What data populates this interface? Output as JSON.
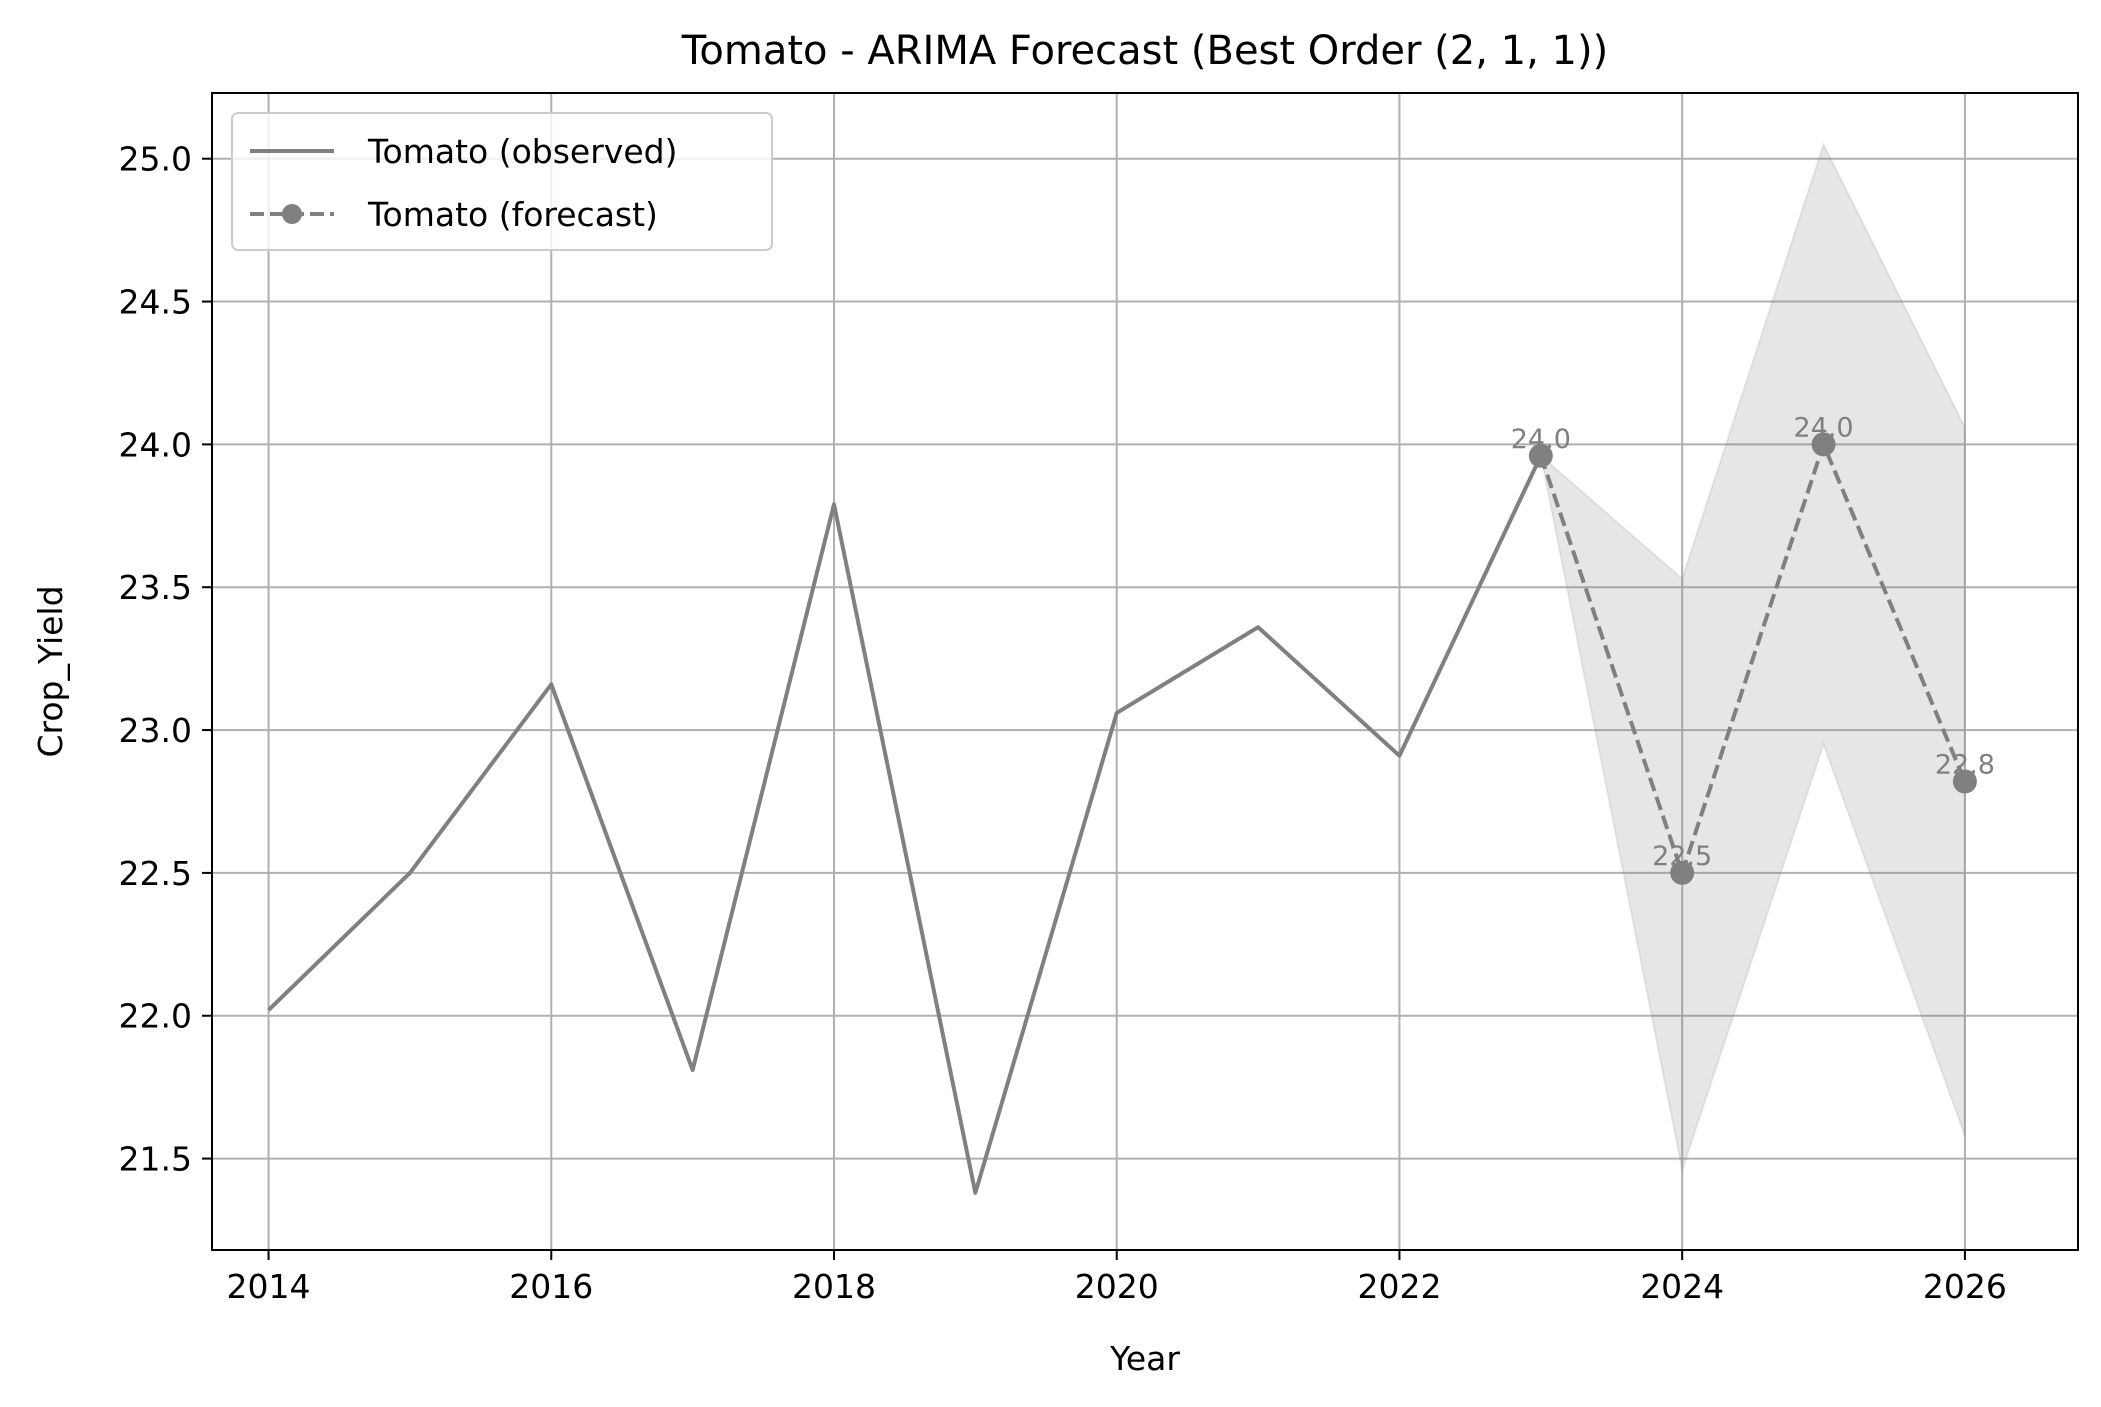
{
  "chart_data": {
    "type": "line",
    "title": "Tomato - ARIMA Forecast (Best Order (2, 1, 1))",
    "xlabel": "Year",
    "ylabel": "Crop_Yield",
    "xlim": [
      2013.6,
      2026.8
    ],
    "ylim": [
      21.18,
      25.23
    ],
    "xticks": [
      2014,
      2016,
      2018,
      2020,
      2022,
      2024,
      2026
    ],
    "yticks": [
      21.5,
      22.0,
      22.5,
      23.0,
      23.5,
      24.0,
      24.5,
      25.0
    ],
    "xtick_labels": [
      "2014",
      "2016",
      "2018",
      "2020",
      "2022",
      "2024",
      "2026"
    ],
    "ytick_labels": [
      "21.5",
      "22.0",
      "22.5",
      "23.0",
      "23.5",
      "24.0",
      "24.5",
      "25.0"
    ],
    "grid": true,
    "legend_position": "top-left",
    "series": [
      {
        "name": "Tomato (observed)",
        "style": "solid",
        "color": "#808080",
        "x": [
          2014,
          2015,
          2016,
          2017,
          2018,
          2019,
          2020,
          2021,
          2022,
          2023
        ],
        "y": [
          22.02,
          22.5,
          23.16,
          21.81,
          23.79,
          21.38,
          23.06,
          23.36,
          22.91,
          23.96
        ]
      },
      {
        "name": "Tomato (forecast)",
        "style": "dashed-marker",
        "color": "#808080",
        "x": [
          2023,
          2024,
          2025,
          2026
        ],
        "y": [
          23.96,
          22.5,
          24.0,
          22.82
        ],
        "labels": [
          "24.0",
          "22.5",
          "24.0",
          "22.8"
        ]
      }
    ],
    "confidence_band": {
      "color": "#d9d9d9",
      "x": [
        2023,
        2024,
        2025,
        2026
      ],
      "lower": [
        23.96,
        21.46,
        22.95,
        21.58
      ],
      "upper": [
        23.96,
        23.53,
        25.05,
        24.06
      ]
    }
  }
}
